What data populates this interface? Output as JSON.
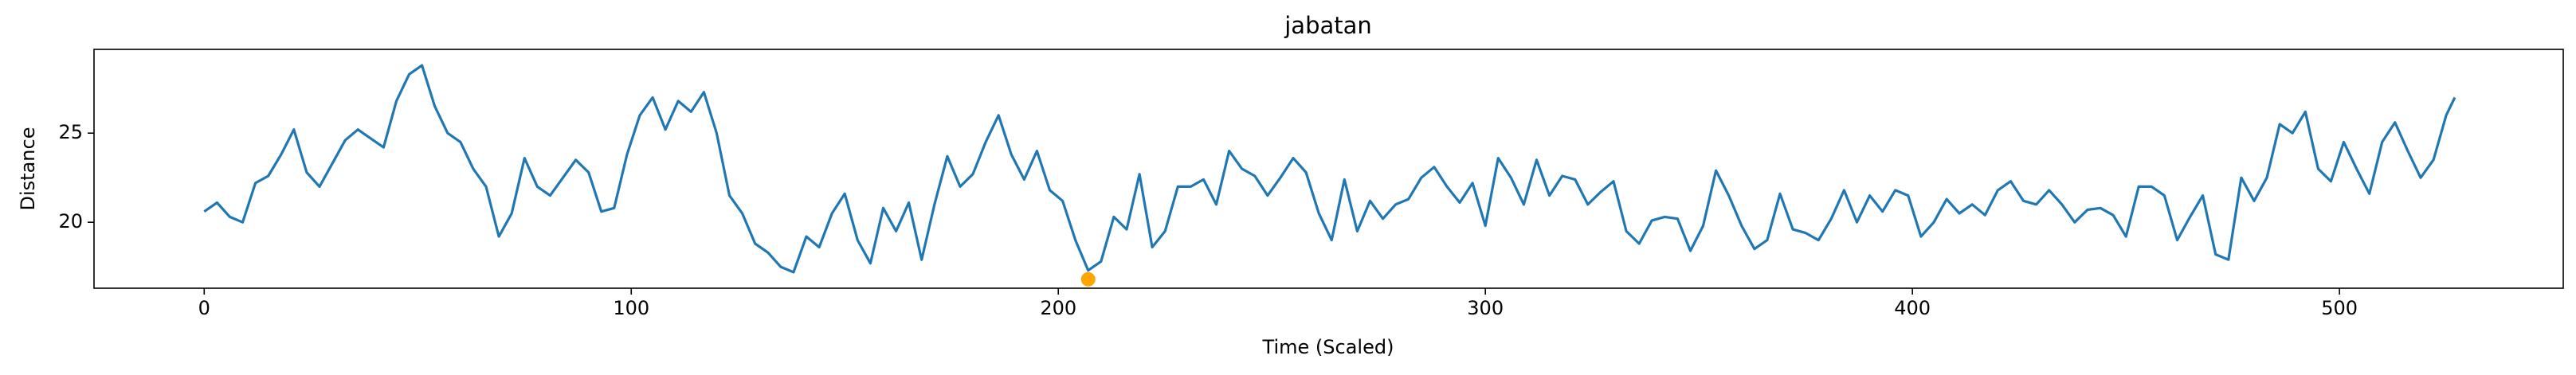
{
  "chart_data": {
    "type": "line",
    "title": "jabatan",
    "x_label": "Time (Scaled)",
    "y_label": "Distance",
    "x": [
      0,
      3,
      6,
      9,
      12,
      15,
      18,
      21,
      24,
      27,
      30,
      33,
      36,
      39,
      42,
      45,
      48,
      51,
      54,
      57,
      60,
      63,
      66,
      69,
      72,
      75,
      78,
      81,
      84,
      87,
      90,
      93,
      96,
      99,
      102,
      105,
      108,
      111,
      114,
      117,
      120,
      123,
      126,
      129,
      132,
      135,
      138,
      141,
      144,
      147,
      150,
      153,
      156,
      159,
      162,
      165,
      168,
      171,
      174,
      177,
      180,
      183,
      186,
      189,
      192,
      195,
      198,
      201,
      204,
      207,
      210,
      213,
      216,
      219,
      222,
      225,
      228,
      231,
      234,
      237,
      240,
      243,
      246,
      249,
      252,
      255,
      258,
      261,
      264,
      267,
      270,
      273,
      276,
      279,
      282,
      285,
      288,
      291,
      294,
      297,
      300,
      303,
      306,
      309,
      312,
      315,
      318,
      321,
      324,
      327,
      330,
      333,
      336,
      339,
      342,
      345,
      348,
      351,
      354,
      357,
      360,
      363,
      366,
      369,
      372,
      375,
      378,
      381,
      384,
      387,
      390,
      393,
      396,
      399,
      402,
      405,
      408,
      411,
      414,
      417,
      420,
      423,
      426,
      429,
      432,
      435,
      438,
      441,
      444,
      447,
      450,
      453,
      456,
      459,
      462,
      465,
      468,
      471,
      474,
      477,
      480,
      483,
      486,
      489,
      492,
      495,
      498,
      501,
      504,
      507,
      510,
      513,
      516,
      519,
      522,
      525,
      527
    ],
    "series": [
      {
        "color": "#1f77b4",
        "values": [
          20.6,
          21.1,
          20.3,
          20.0,
          22.2,
          22.6,
          23.8,
          25.2,
          22.8,
          22.0,
          23.3,
          24.6,
          25.2,
          24.7,
          24.2,
          26.8,
          28.3,
          28.8,
          26.5,
          25.0,
          24.5,
          23.0,
          22.0,
          19.2,
          20.5,
          23.6,
          22.0,
          21.5,
          22.5,
          23.5,
          22.8,
          20.6,
          20.8,
          23.8,
          26.0,
          27.0,
          25.2,
          26.8,
          26.2,
          27.3,
          25.0,
          21.5,
          20.5,
          18.8,
          18.3,
          17.5,
          17.2,
          19.2,
          18.6,
          20.5,
          21.6,
          19.0,
          17.7,
          20.8,
          19.5,
          21.1,
          17.9,
          21.0,
          23.7,
          22.0,
          22.7,
          24.5,
          26.0,
          23.8,
          22.4,
          24.0,
          21.8,
          21.2,
          19.0,
          17.3,
          17.8,
          20.3,
          19.6,
          22.7,
          18.6,
          19.5,
          22.0,
          22.0,
          22.4,
          21.0,
          24.0,
          23.0,
          22.6,
          21.5,
          22.5,
          23.6,
          22.8,
          20.5,
          19.0,
          22.4,
          19.5,
          21.2,
          20.2,
          21.0,
          21.3,
          22.5,
          23.1,
          22.0,
          21.1,
          22.2,
          19.8,
          23.6,
          22.5,
          21.0,
          23.5,
          21.5,
          22.6,
          22.4,
          21.0,
          21.7,
          22.3,
          19.5,
          18.8,
          20.1,
          20.3,
          20.2,
          18.4,
          19.8,
          22.9,
          21.5,
          19.8,
          18.5,
          19.0,
          21.6,
          19.6,
          19.4,
          19.0,
          20.2,
          21.8,
          20.0,
          21.5,
          20.6,
          21.8,
          21.5,
          19.2,
          20.0,
          21.3,
          20.5,
          21.0,
          20.4,
          21.8,
          22.3,
          21.2,
          21.0,
          21.8,
          21.0,
          20.0,
          20.7,
          20.8,
          20.4,
          19.2,
          22.0,
          22.0,
          21.5,
          19.0,
          20.3,
          21.5,
          18.2,
          17.9,
          22.5,
          21.2,
          22.5,
          25.5,
          25.0,
          26.2,
          23.0,
          22.3,
          24.5,
          23.0,
          21.6,
          24.5,
          25.6,
          24.0,
          22.5,
          23.5,
          26.0,
          27.0
        ]
      }
    ],
    "highlight": {
      "x": 207,
      "y": 16.8,
      "color": "#ffa500"
    },
    "xlim": [
      -25.8,
      552.4
    ],
    "ylim": [
      16.3,
      29.7
    ],
    "xticks": [
      0,
      100,
      200,
      300,
      400,
      500
    ],
    "yticks": [
      20,
      25
    ]
  }
}
